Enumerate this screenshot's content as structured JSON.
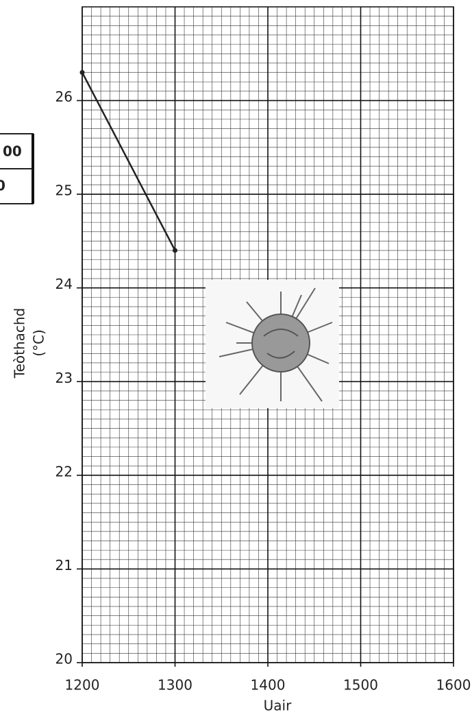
{
  "table_fragment": [
    "00",
    "0"
  ],
  "chart_data": {
    "type": "line",
    "xlabel": "Uair",
    "ylabel": [
      "Teòthachd",
      "(°C)"
    ],
    "x": [
      1200,
      1300
    ],
    "values": [
      26.3,
      24.4
    ],
    "color": "#222",
    "xlim": [
      1200,
      1600
    ],
    "xticks": [
      1200,
      1300,
      1400,
      1500,
      1600
    ],
    "ylim": [
      20,
      27
    ],
    "yticks": [
      20,
      21,
      22,
      23,
      24,
      25,
      26
    ],
    "grid": true,
    "minor_grid_divisions": 10
  }
}
